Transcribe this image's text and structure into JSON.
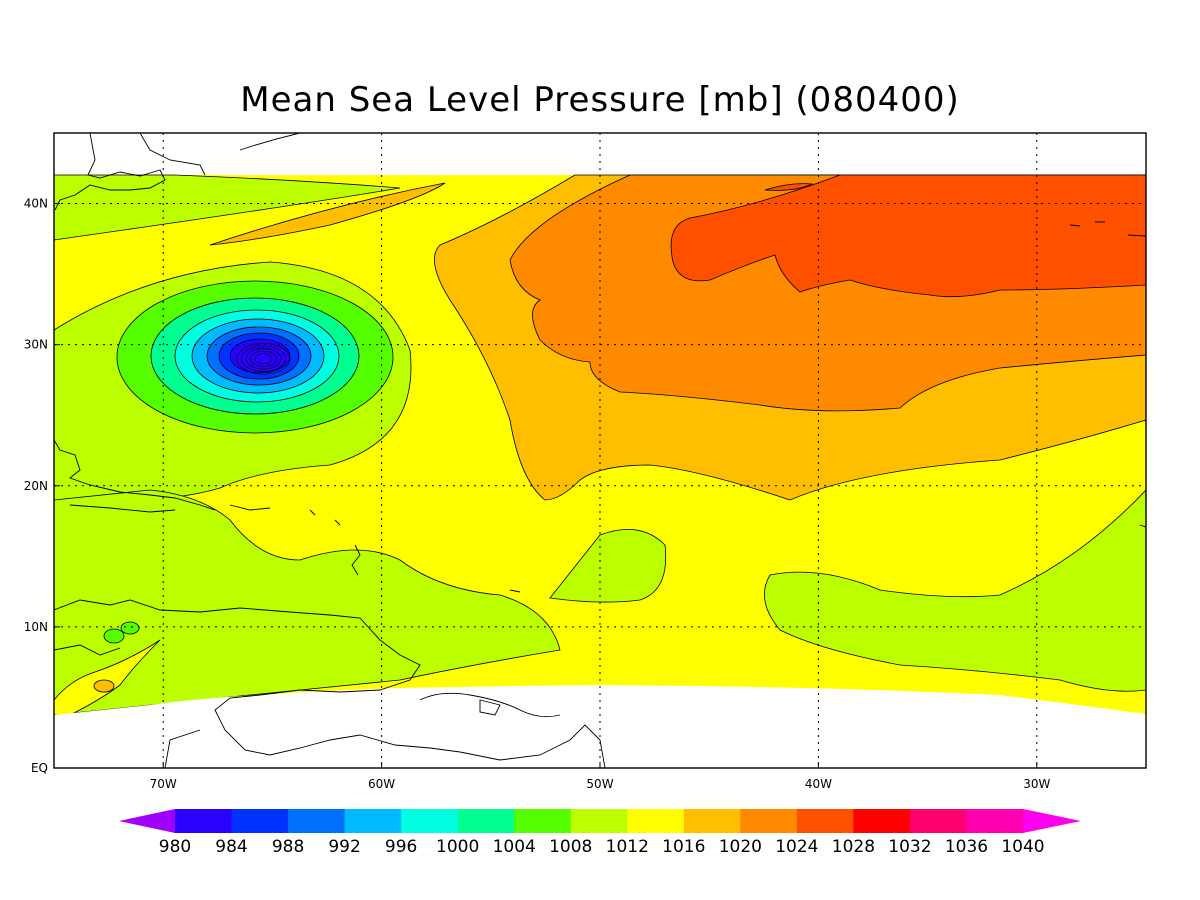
{
  "title": "Mean Sea Level Pressure [mb] (080400)",
  "map": {
    "lon_range": [
      -75,
      -25
    ],
    "lat_range": [
      0,
      45
    ],
    "data_lat_range": [
      5,
      42
    ],
    "grid": true,
    "lon_ticks": [
      {
        "value": -70,
        "label": "70W"
      },
      {
        "value": -60,
        "label": "60W"
      },
      {
        "value": -50,
        "label": "50W"
      },
      {
        "value": -40,
        "label": "40W"
      },
      {
        "value": -30,
        "label": "30W"
      }
    ],
    "lat_ticks": [
      {
        "value": 0,
        "label": "EQ"
      },
      {
        "value": 10,
        "label": "10N"
      },
      {
        "value": 20,
        "label": "20N"
      },
      {
        "value": 30,
        "label": "30N"
      },
      {
        "value": 40,
        "label": "40N"
      }
    ],
    "low_center": {
      "lon": -65.5,
      "lat": 29,
      "pressure": 980
    }
  },
  "colorbar": {
    "levels": [
      "980",
      "984",
      "988",
      "992",
      "996",
      "1000",
      "1004",
      "1008",
      "1012",
      "1016",
      "1020",
      "1024",
      "1028",
      "1032",
      "1036",
      "1040"
    ],
    "colors": [
      "#a000ff",
      "#2a00ff",
      "#0033ff",
      "#0070ff",
      "#00bbff",
      "#00ffe0",
      "#00ff90",
      "#55ff00",
      "#bbff00",
      "#ffff00",
      "#ffbf00",
      "#ff8a00",
      "#ff5000",
      "#ff0000",
      "#ff0070",
      "#ff00b0",
      "#ff00ee"
    ]
  }
}
